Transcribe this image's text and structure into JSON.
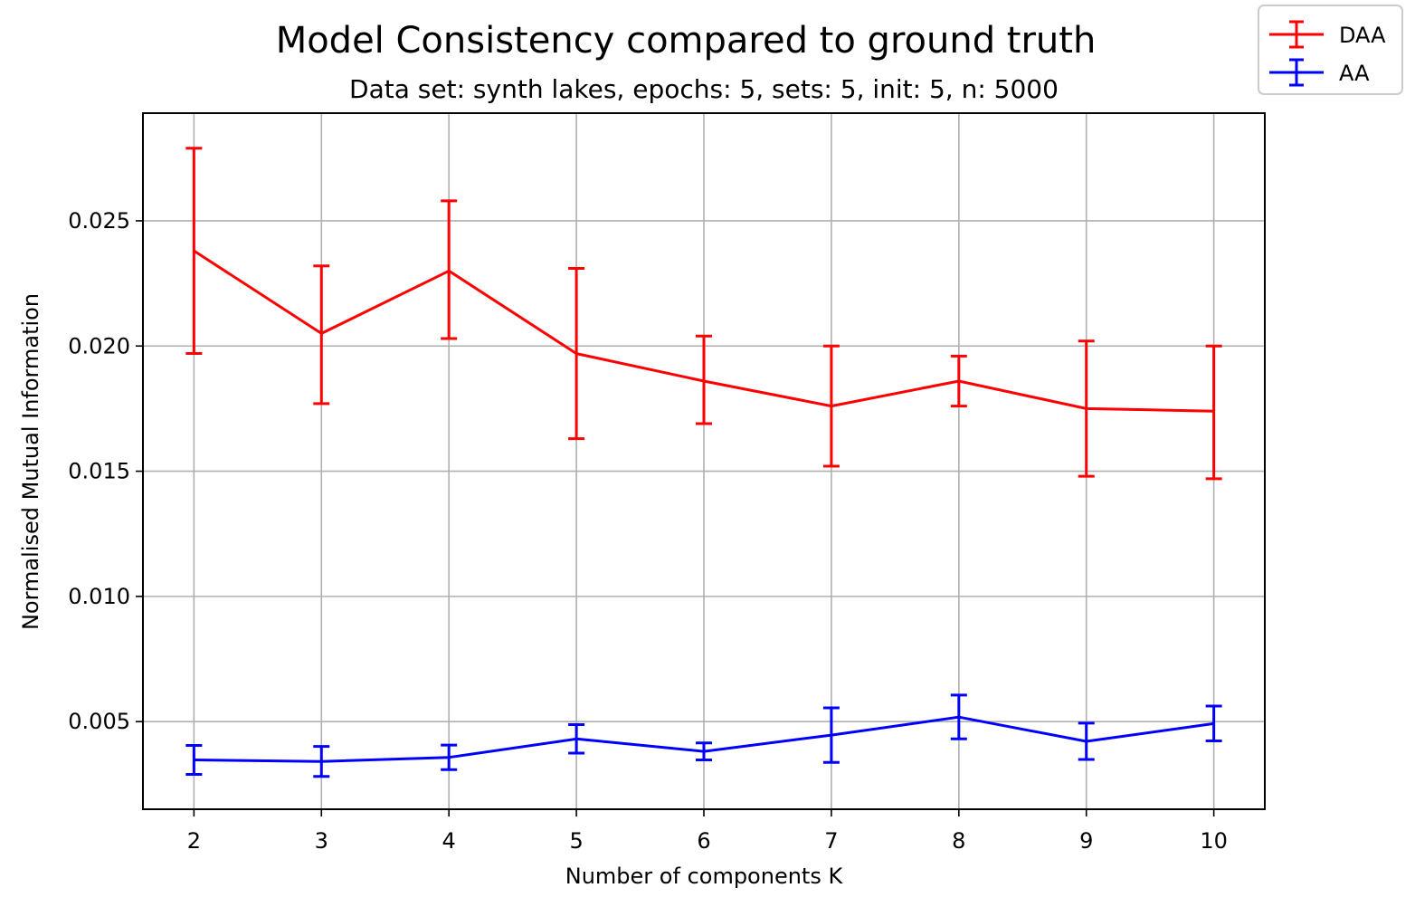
{
  "chart_data": {
    "type": "line",
    "title": "Model Consistency compared to ground truth",
    "subtitle": "Data set:  synth lakes, epochs: 5, sets: 5, init: 5, n: 5000",
    "xlabel": "Number of components K",
    "ylabel": "Normalised Mutual Information",
    "x": [
      2,
      3,
      4,
      5,
      6,
      7,
      8,
      9,
      10
    ],
    "x_ticks": [
      "2",
      "3",
      "4",
      "5",
      "6",
      "7",
      "8",
      "9",
      "10"
    ],
    "y_ticks": [
      "0.005",
      "0.010",
      "0.015",
      "0.020",
      "0.025"
    ],
    "xlim": [
      1.6,
      10.4
    ],
    "ylim": [
      0.0015,
      0.0293
    ],
    "grid": true,
    "legend_position": "top-right",
    "error_bars": true,
    "series": [
      {
        "name": "DAA",
        "color": "#ff0000",
        "values": [
          0.0238,
          0.0205,
          0.023,
          0.0197,
          0.0186,
          0.0176,
          0.0186,
          0.0175,
          0.0174
        ],
        "err_low": [
          0.0197,
          0.0177,
          0.0203,
          0.0163,
          0.0169,
          0.0152,
          0.0176,
          0.0148,
          0.0147
        ],
        "err_high": [
          0.0279,
          0.0232,
          0.0258,
          0.0231,
          0.0204,
          0.02,
          0.0196,
          0.0202,
          0.02
        ]
      },
      {
        "name": "AA",
        "color": "#0000ff",
        "values": [
          0.00347,
          0.00341,
          0.00357,
          0.00431,
          0.00381,
          0.00446,
          0.00518,
          0.00421,
          0.00492
        ],
        "err_low": [
          0.00289,
          0.00281,
          0.00308,
          0.00374,
          0.00347,
          0.00337,
          0.00431,
          0.00349,
          0.00423
        ],
        "err_high": [
          0.00405,
          0.00401,
          0.00406,
          0.00488,
          0.00415,
          0.00555,
          0.00606,
          0.00494,
          0.00562
        ]
      }
    ]
  }
}
